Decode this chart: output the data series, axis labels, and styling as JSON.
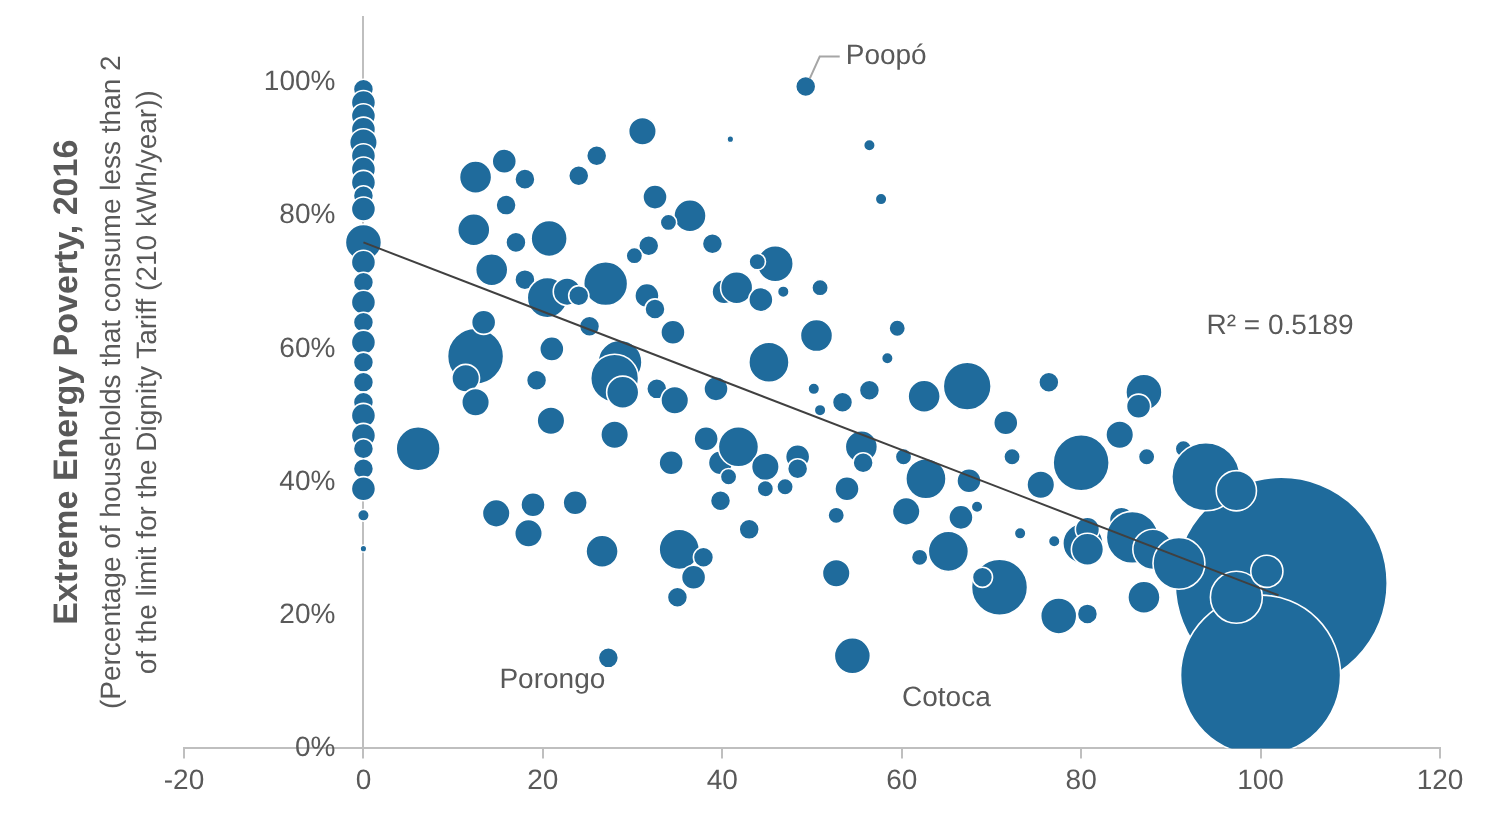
{
  "chart_data": {
    "type": "bubble",
    "ylabel": "Extreme Energy Poverty, 2016\n(Percentage of households that consume less than 2\nof the limit for the Dignity Tariff (210 kWh/year))",
    "xlim": [
      -20,
      120
    ],
    "xticks": [
      -20,
      0,
      20,
      40,
      60,
      80,
      100,
      120
    ],
    "ylim": [
      0,
      110
    ],
    "yticks": [
      {
        "value": 0,
        "label": "0%"
      },
      {
        "value": 20,
        "label": "20%"
      },
      {
        "value": 40,
        "label": "40%"
      },
      {
        "value": 60,
        "label": "60%"
      },
      {
        "value": 80,
        "label": "80%"
      },
      {
        "value": 100,
        "label": "100%"
      }
    ],
    "series": [
      {
        "type": "bubble",
        "color": "#1f6b9c",
        "x": [
          102.3,
          100,
          0,
          0,
          0,
          0,
          0,
          0,
          0,
          0,
          0,
          0,
          0,
          0,
          0,
          0,
          0,
          0,
          0,
          0,
          0,
          0,
          0,
          0,
          0,
          0,
          0,
          0,
          31.1,
          40.9,
          12.5,
          15.7,
          18,
          24,
          26,
          15.9,
          32.5,
          36.4,
          34,
          38.9,
          12.3,
          17,
          20.7,
          31.8,
          30.2,
          14.3,
          18,
          27,
          20.5,
          22.7,
          24,
          31.6,
          32.5,
          25.2,
          34.5,
          40.2,
          12.5,
          13.4,
          21,
          28.6,
          11.4,
          19.3,
          32.7,
          39.3,
          12.5,
          28,
          28.9,
          34.7,
          20.9,
          28,
          6.1,
          38.2,
          34.3,
          14.8,
          18.9,
          23.6,
          18.4,
          26.6,
          35.2,
          37.9,
          36.8,
          35,
          27.3,
          39.8,
          39.8,
          49.3,
          56.4,
          57.7,
          45.9,
          43.9,
          41.6,
          44.3,
          46.8,
          50.9,
          50.5,
          59.5,
          58.4,
          45.2,
          50.2,
          56.4,
          62.5,
          67.3,
          76.4,
          53.4,
          50.9,
          71.6,
          41.8,
          44.8,
          48.4,
          48.4,
          40.7,
          47,
          44.8,
          55.5,
          55.7,
          60.2,
          62.7,
          67.5,
          72.3,
          75.5,
          53.9,
          52.7,
          43,
          60.5,
          66.6,
          68.4,
          73.2,
          77,
          80.2,
          65.2,
          62,
          70.9,
          69,
          77.5,
          80.7,
          52.7,
          54.5,
          80,
          87,
          86.4,
          84.3,
          87.3,
          91.4,
          93.9,
          97.3,
          80.7,
          80.7,
          84.5,
          85.7,
          88,
          90.9,
          97.3,
          100.7,
          87
        ],
        "values": [
          24.8,
          11,
          99,
          97,
          95,
          93,
          91,
          89,
          87,
          85,
          83,
          81,
          76,
          73,
          70,
          67,
          64,
          61,
          58,
          55,
          52,
          50,
          47,
          45,
          42,
          39,
          35,
          30,
          92.7,
          91.5,
          85.8,
          88.2,
          85.5,
          86,
          89,
          81.6,
          82.8,
          80,
          79,
          75.8,
          77.9,
          76,
          76.6,
          75.5,
          74,
          71.9,
          70.4,
          69.8,
          67.7,
          68.6,
          68,
          68,
          66,
          63.4,
          62.5,
          68.6,
          58.9,
          64,
          60,
          58,
          55.6,
          55.3,
          54,
          54,
          52,
          55.6,
          53.5,
          52.3,
          49.2,
          47.1,
          45,
          46.5,
          42.9,
          35.3,
          36.6,
          36.9,
          32.3,
          29.6,
          29.9,
          28.7,
          25.7,
          22.7,
          13.6,
          37.2,
          42.9,
          99.4,
          90.6,
          82.5,
          72.8,
          73.1,
          69.2,
          67.4,
          68.6,
          69.2,
          62,
          63.1,
          58.6,
          58,
          54,
          53.8,
          52.9,
          54.4,
          55,
          52,
          50.8,
          48.9,
          45.3,
          42.3,
          43.8,
          42,
          40.8,
          39.3,
          39,
          45.3,
          42.9,
          43.8,
          40.5,
          40.2,
          43.8,
          39.6,
          39,
          35,
          32.9,
          35.6,
          34.7,
          36.3,
          32.3,
          31.1,
          30.8,
          29.6,
          28.7,
          24.2,
          25.7,
          19.9,
          20.2,
          26.3,
          13.9,
          42.9,
          53.5,
          51.4,
          47.1,
          43.8,
          45,
          40.8,
          38.7,
          32.9,
          29.9,
          34.4,
          31.7,
          29.9,
          27.8,
          22.7,
          26.6,
          22.7
        ],
        "sizes": [
          1,
          0.57,
          0.009,
          0.013,
          0.013,
          0.013,
          0.017,
          0.013,
          0.013,
          0.013,
          0.009,
          0.013,
          0.029,
          0.013,
          0.009,
          0.013,
          0.009,
          0.013,
          0.009,
          0.009,
          0.009,
          0.013,
          0.013,
          0.009,
          0.009,
          0.013,
          0.003,
          0.001,
          0.017,
          0.001,
          0.023,
          0.013,
          0.009,
          0.009,
          0.009,
          0.009,
          0.013,
          0.023,
          0.006,
          0.009,
          0.023,
          0.009,
          0.029,
          0.009,
          0.006,
          0.023,
          0.009,
          0.043,
          0.036,
          0.017,
          0.009,
          0.013,
          0.009,
          0.009,
          0.013,
          0.013,
          0.07,
          0.013,
          0.013,
          0.043,
          0.017,
          0.009,
          0.009,
          0.013,
          0.017,
          0.051,
          0.023,
          0.017,
          0.017,
          0.017,
          0.043,
          0.013,
          0.013,
          0.017,
          0.013,
          0.013,
          0.017,
          0.023,
          0.036,
          0.009,
          0.013,
          0.009,
          0.009,
          0.009,
          0.013,
          0.009,
          0.003,
          0.003,
          0.029,
          0.006,
          0.023,
          0.013,
          0.003,
          0.006,
          0.023,
          0.006,
          0.003,
          0.036,
          0.003,
          0.009,
          0.023,
          0.051,
          0.009,
          0.009,
          0.003,
          0.013,
          0.036,
          0.017,
          0.013,
          0.009,
          0.006,
          0.006,
          0.006,
          0.023,
          0.009,
          0.006,
          0.036,
          0.013,
          0.006,
          0.017,
          0.013,
          0.006,
          0.009,
          0.017,
          0.013,
          0.003,
          0.003,
          0.003,
          0.036,
          0.036,
          0.006,
          0.07,
          0.009,
          0.029,
          0.009,
          0.017,
          0.029,
          0.07,
          0.029,
          0.013,
          0.017,
          0.006,
          0.006,
          0.103,
          0.036,
          0.013,
          0.023,
          0.013,
          0.06,
          0.036,
          0.06,
          0.06,
          0.023,
          0.023
        ]
      },
      {
        "type": "line",
        "color": "#404040",
        "marker": "none",
        "x": [
          0,
          102
        ],
        "values": [
          76,
          23
        ]
      }
    ],
    "annotations": [
      {
        "text": "Poopó",
        "x": 49.3,
        "y": 99.4
      },
      {
        "text": "Porongo",
        "x": 27.3,
        "y": 13.6
      },
      {
        "text": "Cotoca",
        "x": 54.5,
        "y": 13.9
      },
      "R² = 0.5189"
    ]
  }
}
